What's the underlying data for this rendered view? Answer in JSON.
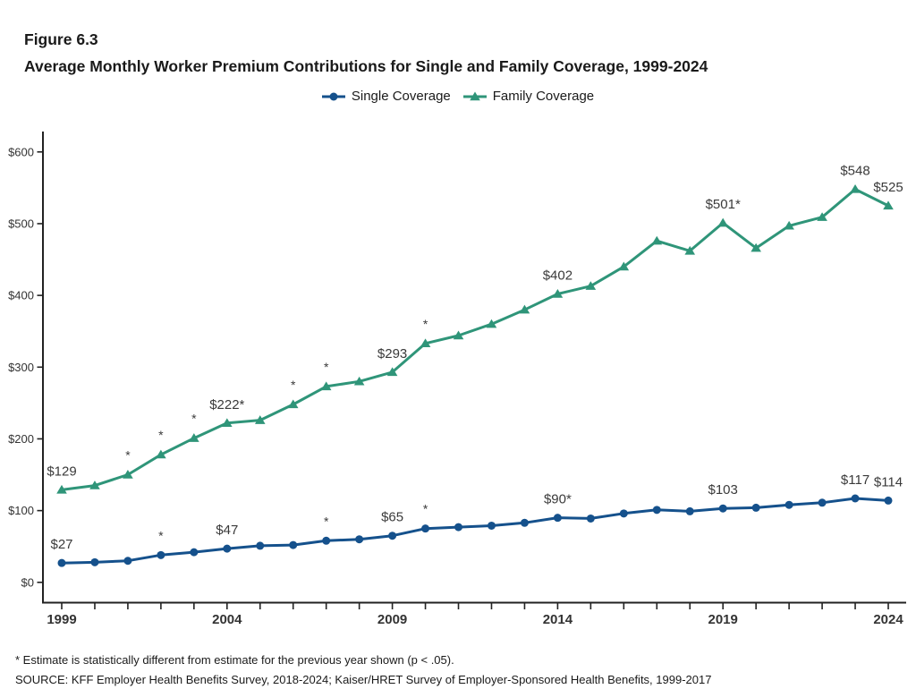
{
  "header": {
    "figure_label": "Figure 6.3",
    "title": "Average Monthly Worker Premium Contributions for Single and Family Coverage, 1999-2024"
  },
  "legend": {
    "items": [
      {
        "label": "Single Coverage",
        "marker": "circle",
        "color": "#15518C"
      },
      {
        "label": "Family Coverage",
        "marker": "triangle",
        "color": "#2F9579"
      }
    ]
  },
  "chart_data": {
    "type": "line",
    "title": "Average Monthly Worker Premium Contributions for Single and Family Coverage, 1999-2024",
    "xlabel": "",
    "ylabel": "",
    "grid": false,
    "legend_position": "top-center",
    "x": [
      1999,
      2000,
      2001,
      2002,
      2003,
      2004,
      2005,
      2006,
      2007,
      2008,
      2009,
      2010,
      2011,
      2012,
      2013,
      2014,
      2015,
      2016,
      2017,
      2018,
      2019,
      2020,
      2021,
      2022,
      2023,
      2024
    ],
    "x_axis": {
      "range": [
        1999,
        2024
      ],
      "labeled_ticks": [
        1999,
        2004,
        2009,
        2014,
        2019,
        2024
      ]
    },
    "y_axis": {
      "ticks": [
        0,
        100,
        200,
        300,
        400,
        500,
        600
      ],
      "labels": [
        "$0",
        "$100",
        "$200",
        "$300",
        "$400",
        "$500",
        "$600"
      ],
      "ylim": [
        0,
        630
      ]
    },
    "series": [
      {
        "name": "Single Coverage",
        "color": "#15518C",
        "marker": "circle",
        "values": [
          27,
          28,
          30,
          38,
          42,
          47,
          51,
          52,
          58,
          60,
          65,
          75,
          77,
          79,
          83,
          90,
          89,
          96,
          101,
          99,
          103,
          104,
          108,
          111,
          117,
          114
        ],
        "value_labels": [
          {
            "year": 1999,
            "text": "$27"
          },
          {
            "year": 2004,
            "text": "$47"
          },
          {
            "year": 2009,
            "text": "$65"
          },
          {
            "year": 2014,
            "text": "$90*"
          },
          {
            "year": 2019,
            "text": "$103"
          },
          {
            "year": 2023,
            "text": "$117"
          },
          {
            "year": 2024,
            "text": "$114"
          }
        ],
        "asterisk_years": [
          2002,
          2007,
          2010
        ]
      },
      {
        "name": "Family Coverage",
        "color": "#2F9579",
        "marker": "triangle",
        "values": [
          129,
          135,
          150,
          178,
          201,
          222,
          226,
          248,
          273,
          280,
          293,
          333,
          344,
          360,
          380,
          402,
          413,
          440,
          476,
          462,
          501,
          466,
          497,
          509,
          548,
          525
        ],
        "value_labels": [
          {
            "year": 1999,
            "text": "$129"
          },
          {
            "year": 2004,
            "text": "$222*"
          },
          {
            "year": 2009,
            "text": "$293"
          },
          {
            "year": 2014,
            "text": "$402"
          },
          {
            "year": 2019,
            "text": "$501*"
          },
          {
            "year": 2023,
            "text": "$548"
          },
          {
            "year": 2024,
            "text": "$525"
          }
        ],
        "asterisk_years": [
          2001,
          2002,
          2003,
          2006,
          2007,
          2010
        ]
      }
    ]
  },
  "footnotes": {
    "asterisk_note": "* Estimate is statistically different from estimate for the previous year shown (p < .05).",
    "source": "SOURCE: KFF Employer Health Benefits Survey, 2018-2024; Kaiser/HRET Survey of Employer-Sponsored Health Benefits, 1999-2017"
  }
}
